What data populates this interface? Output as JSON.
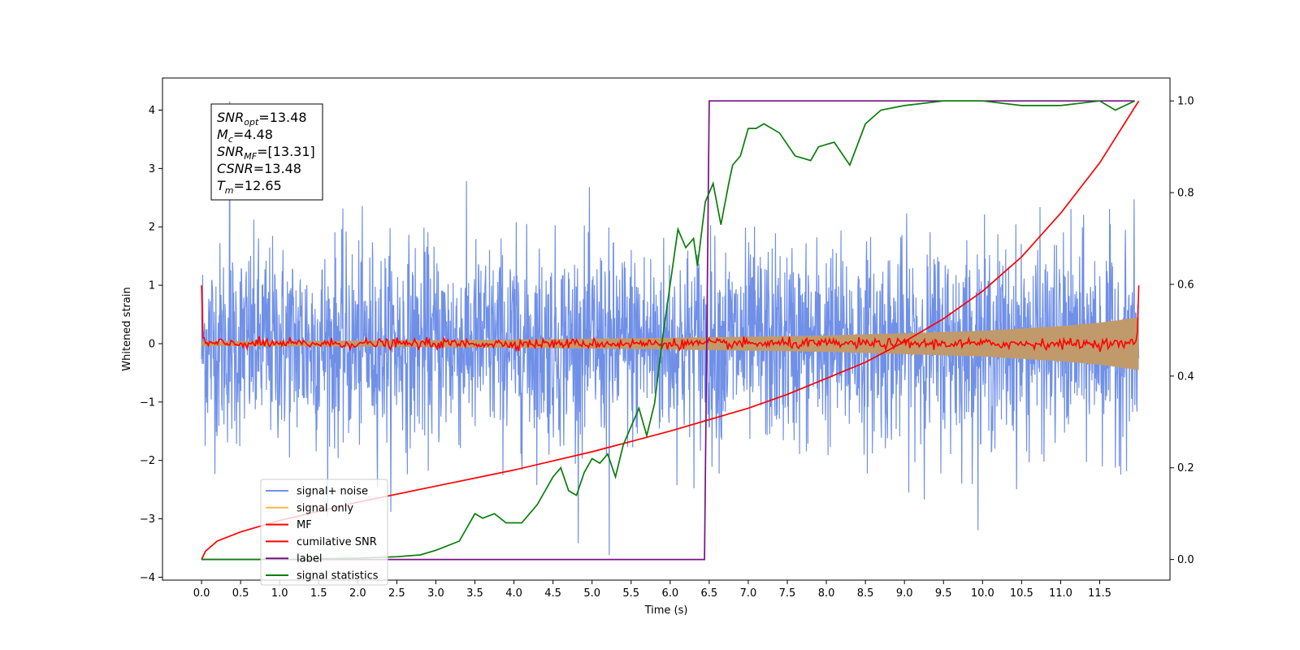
{
  "chart_data": {
    "type": "line",
    "xlabel": "Time (s)",
    "ylabel": "Whitened strain",
    "xlim": [
      -0.5,
      12.4
    ],
    "ylim_left": [
      -4.05,
      4.55
    ],
    "ylim_right": [
      -0.045,
      1.05
    ],
    "x_ticks": [
      0.0,
      0.5,
      1.0,
      1.5,
      2.0,
      2.5,
      3.0,
      3.5,
      4.0,
      4.5,
      5.0,
      5.5,
      6.0,
      6.5,
      7.0,
      7.5,
      8.0,
      8.5,
      9.0,
      9.5,
      10.0,
      10.5,
      11.0,
      11.5
    ],
    "x_tick_labels": [
      "0.0",
      "0.5",
      "1.0",
      "1.5",
      "2.0",
      "2.5",
      "3.0",
      "3.5",
      "4.0",
      "4.5",
      "5.0",
      "5.5",
      "6.0",
      "6.5",
      "7.0",
      "7.5",
      "8.0",
      "8.5",
      "9.0",
      "9.5",
      "10.0",
      "10.5",
      "11.0",
      "11.5"
    ],
    "y_left_ticks": [
      -4,
      -3,
      -2,
      -1,
      0,
      1,
      2,
      3,
      4
    ],
    "y_left_tick_labels": [
      "−4",
      "−3",
      "−2",
      "−1",
      "0",
      "1",
      "2",
      "3",
      "4"
    ],
    "y_right_ticks": [
      0.0,
      0.2,
      0.4,
      0.6,
      0.8,
      1.0
    ],
    "y_right_tick_labels": [
      "0.0",
      "0.2",
      "0.4",
      "0.6",
      "0.8",
      "1.0"
    ],
    "grid": false,
    "legend_position": "lower-left",
    "annotation": [
      {
        "base": "SNR",
        "sub": "opt",
        "value": "=13.48"
      },
      {
        "base": "M",
        "sub": "c",
        "value": "=4.48"
      },
      {
        "base": "SNR",
        "sub": "MF",
        "value": "=[13.31]"
      },
      {
        "base": "CSNR",
        "sub": "",
        "value": "=13.48"
      },
      {
        "base": "T",
        "sub": "m",
        "value": "=12.65"
      }
    ],
    "series": [
      {
        "name": "signal+ noise",
        "color": "#7090e8",
        "axis": "left",
        "kind": "noise",
        "x_range": [
          0.0,
          12.0
        ],
        "std": 1.0,
        "peak_max": 4.15,
        "peak_min": -3.62
      },
      {
        "name": "signal only",
        "color": "#ffb74d",
        "axis": "left",
        "kind": "envelope",
        "x": [
          0.0,
          2.0,
          4.0,
          6.0,
          8.0,
          10.0,
          11.0,
          11.5,
          12.0
        ],
        "amplitude": [
          0.04,
          0.05,
          0.07,
          0.1,
          0.14,
          0.22,
          0.3,
          0.36,
          0.45
        ]
      },
      {
        "name": "MF",
        "color": "#ff0000",
        "axis": "left",
        "kind": "mf",
        "x_range": [
          0.0,
          12.0
        ],
        "start_value": 1.0,
        "end_value": 1.0,
        "noise_amplitude": 0.07
      },
      {
        "name": "cumilative SNR",
        "color": "#ff0000",
        "axis": "right",
        "x": [
          0.0,
          0.05,
          0.2,
          0.5,
          1.0,
          2.0,
          3.0,
          4.0,
          5.0,
          6.0,
          6.5,
          7.0,
          7.5,
          8.0,
          8.5,
          9.0,
          9.5,
          10.0,
          10.5,
          11.0,
          11.5,
          12.0
        ],
        "y": [
          0.0,
          0.018,
          0.04,
          0.06,
          0.085,
          0.125,
          0.16,
          0.195,
          0.235,
          0.28,
          0.305,
          0.33,
          0.36,
          0.395,
          0.43,
          0.475,
          0.525,
          0.585,
          0.66,
          0.755,
          0.865,
          1.0
        ]
      },
      {
        "name": "label",
        "color": "#7b0f87",
        "axis": "right",
        "x": [
          0.0,
          6.44,
          6.5,
          11.95
        ],
        "y": [
          0.0,
          0.0,
          1.0,
          1.0
        ]
      },
      {
        "name": "signal statistics",
        "color": "#0a7d0a",
        "axis": "right",
        "x": [
          0.0,
          1.0,
          2.0,
          2.5,
          2.8,
          3.0,
          3.3,
          3.5,
          3.6,
          3.75,
          3.9,
          4.1,
          4.3,
          4.5,
          4.6,
          4.7,
          4.8,
          4.9,
          5.0,
          5.1,
          5.2,
          5.3,
          5.4,
          5.6,
          5.7,
          5.8,
          5.9,
          6.0,
          6.1,
          6.2,
          6.3,
          6.35,
          6.45,
          6.55,
          6.65,
          6.75,
          6.8,
          6.9,
          7.0,
          7.1,
          7.2,
          7.4,
          7.6,
          7.8,
          7.9,
          8.1,
          8.3,
          8.5,
          8.7,
          9.0,
          9.5,
          10.0,
          10.5,
          11.0,
          11.5,
          11.7,
          11.95
        ],
        "y": [
          0.0,
          0.0,
          0.003,
          0.006,
          0.01,
          0.02,
          0.04,
          0.1,
          0.09,
          0.1,
          0.08,
          0.08,
          0.12,
          0.18,
          0.2,
          0.15,
          0.14,
          0.19,
          0.22,
          0.21,
          0.23,
          0.18,
          0.25,
          0.33,
          0.27,
          0.34,
          0.48,
          0.6,
          0.72,
          0.68,
          0.7,
          0.64,
          0.78,
          0.82,
          0.73,
          0.82,
          0.86,
          0.88,
          0.94,
          0.94,
          0.95,
          0.93,
          0.88,
          0.87,
          0.9,
          0.91,
          0.86,
          0.95,
          0.98,
          0.99,
          1.0,
          1.0,
          0.99,
          0.99,
          1.0,
          0.98,
          1.0
        ]
      }
    ]
  }
}
